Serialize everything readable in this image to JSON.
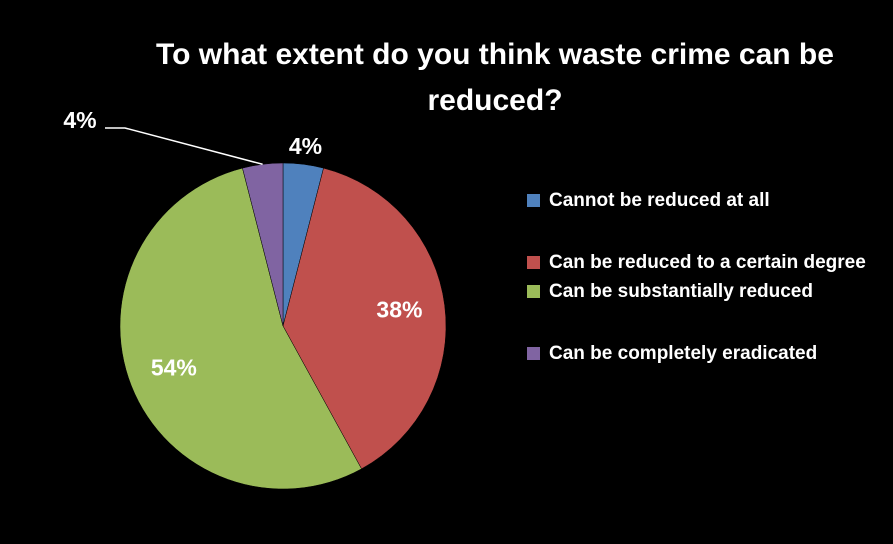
{
  "chart_data": {
    "type": "pie",
    "title": "To what extent do you think waste crime can be reduced?",
    "categories": [
      "Cannot be reduced at all",
      "Can be reduced to a certain degree",
      "Can be substantially reduced",
      "Can be completely eradicated"
    ],
    "values": [
      4,
      38,
      54,
      4
    ],
    "value_labels": [
      "4%",
      "38%",
      "54%",
      "4%"
    ],
    "colors": [
      "#4f81bd",
      "#c0504d",
      "#9bbb59",
      "#8064a2"
    ],
    "legend": "right"
  }
}
